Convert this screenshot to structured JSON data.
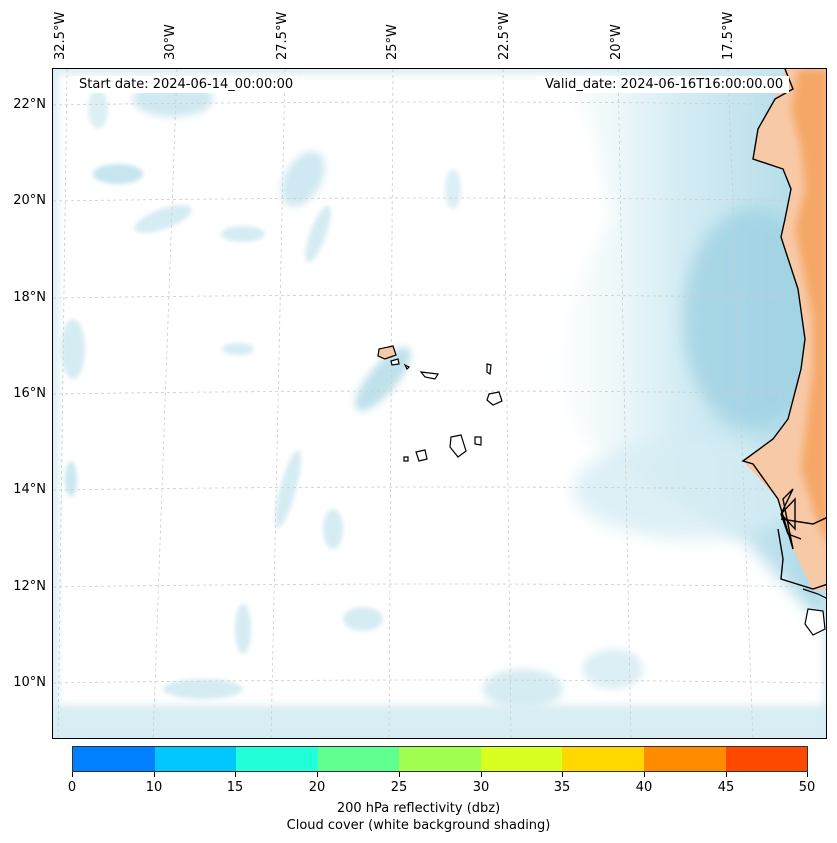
{
  "map": {
    "start_date": "Start date: 2024-06-14_00:00:00",
    "valid_date": "Valid_date: 2024-06-16T16:00:00.00",
    "lon_labels": [
      "32.5°W",
      "30°W",
      "27.5°W",
      "25°W",
      "22.5°W",
      "20°W",
      "17.5°W"
    ],
    "lat_labels": [
      "22°N",
      "20°N",
      "18°N",
      "16°N",
      "14°N",
      "12°N",
      "10°N"
    ],
    "region": "Cape Verde islands and West African coast",
    "colors": {
      "cloud_shade": "#bfe3ee",
      "land_shade": "#f4a460",
      "coast": "#000000",
      "grid": "#cccccc"
    }
  },
  "colorbar": {
    "ticks": [
      "0",
      "10",
      "15",
      "20",
      "25",
      "30",
      "35",
      "40",
      "45",
      "50"
    ],
    "colors": [
      "#0080ff",
      "#00c8ff",
      "#20ffd8",
      "#60ff90",
      "#a0ff50",
      "#d8ff20",
      "#ffd800",
      "#ff8c00",
      "#ff4800"
    ],
    "caption_line1": "200 hPa reflectivity (dbz)",
    "caption_line2": "Cloud cover (white background shading)"
  }
}
